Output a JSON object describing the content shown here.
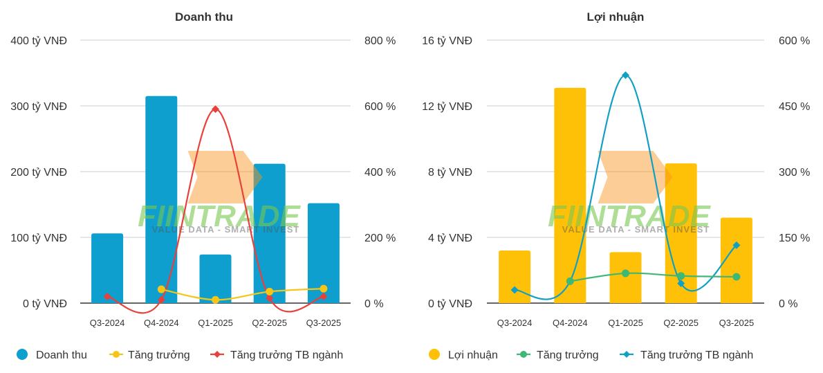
{
  "colors": {
    "grid": "#cccccc",
    "axis": "#333333",
    "revenue_bar": "#0e9fcf",
    "profit_bar": "#ffc107",
    "growth_yellow": "#f5c518",
    "industry_red": "#e8403a",
    "growth_green": "#3fb874",
    "industry_blue": "#119fc4",
    "watermark_green": "#78c850",
    "watermark_orange": "#f7941d"
  },
  "watermark": {
    "brand": "FIINTRADE",
    "tagline": "VALUE DATA - SMART INVEST"
  },
  "chart_data": [
    {
      "type": "bar",
      "title": "Doanh thu",
      "categories": [
        "Q3-2024",
        "Q4-2024",
        "Q1-2025",
        "Q2-2025",
        "Q3-2025"
      ],
      "left_axis": {
        "ticks": [
          "0 tỷ VNĐ",
          "100 tỷ VNĐ",
          "200 tỷ VNĐ",
          "300 tỷ VNĐ",
          "400 tỷ VNĐ"
        ],
        "range": [
          0,
          400
        ]
      },
      "right_axis": {
        "ticks": [
          "0 %",
          "200 %",
          "400 %",
          "600 %",
          "800 %"
        ],
        "range": [
          0,
          800
        ]
      },
      "series": [
        {
          "name": "Doanh thu",
          "kind": "bar",
          "axis": "left",
          "color": "#0e9fcf",
          "marker": "circle",
          "values": [
            106,
            315,
            74,
            212,
            152
          ]
        },
        {
          "name": "Tăng trưởng",
          "kind": "line",
          "axis": "right",
          "color": "#f5c518",
          "marker": "circle",
          "smooth": true,
          "values": [
            null,
            42,
            10,
            35,
            44
          ]
        },
        {
          "name": "Tăng trưởng TB ngành",
          "kind": "line",
          "axis": "right",
          "color": "#e8403a",
          "marker": "diamond",
          "smooth": true,
          "values": [
            20,
            10,
            590,
            15,
            20
          ]
        }
      ]
    },
    {
      "type": "bar",
      "title": "Lợi nhuận",
      "categories": [
        "Q3-2024",
        "Q4-2024",
        "Q1-2025",
        "Q2-2025",
        "Q3-2025"
      ],
      "left_axis": {
        "ticks": [
          "0 tỷ VNĐ",
          "4 tỷ VNĐ",
          "8 tỷ VNĐ",
          "12 tỷ VNĐ",
          "16 tỷ VNĐ"
        ],
        "range": [
          0,
          16
        ]
      },
      "right_axis": {
        "ticks": [
          "0 %",
          "150 %",
          "300 %",
          "450 %",
          "600 %"
        ],
        "range": [
          0,
          600
        ]
      },
      "series": [
        {
          "name": "Lợi nhuận",
          "kind": "bar",
          "axis": "left",
          "color": "#ffc107",
          "marker": "circle",
          "values": [
            3.2,
            13.1,
            3.1,
            8.5,
            5.2
          ]
        },
        {
          "name": "Tăng trưởng",
          "kind": "line",
          "axis": "right",
          "color": "#3fb874",
          "marker": "circle",
          "smooth": true,
          "values": [
            null,
            50,
            68,
            62,
            60
          ]
        },
        {
          "name": "Tăng trưởng TB ngành",
          "kind": "line",
          "axis": "right",
          "color": "#119fc4",
          "marker": "diamond",
          "smooth": true,
          "values": [
            30,
            50,
            520,
            45,
            132
          ]
        }
      ]
    }
  ]
}
